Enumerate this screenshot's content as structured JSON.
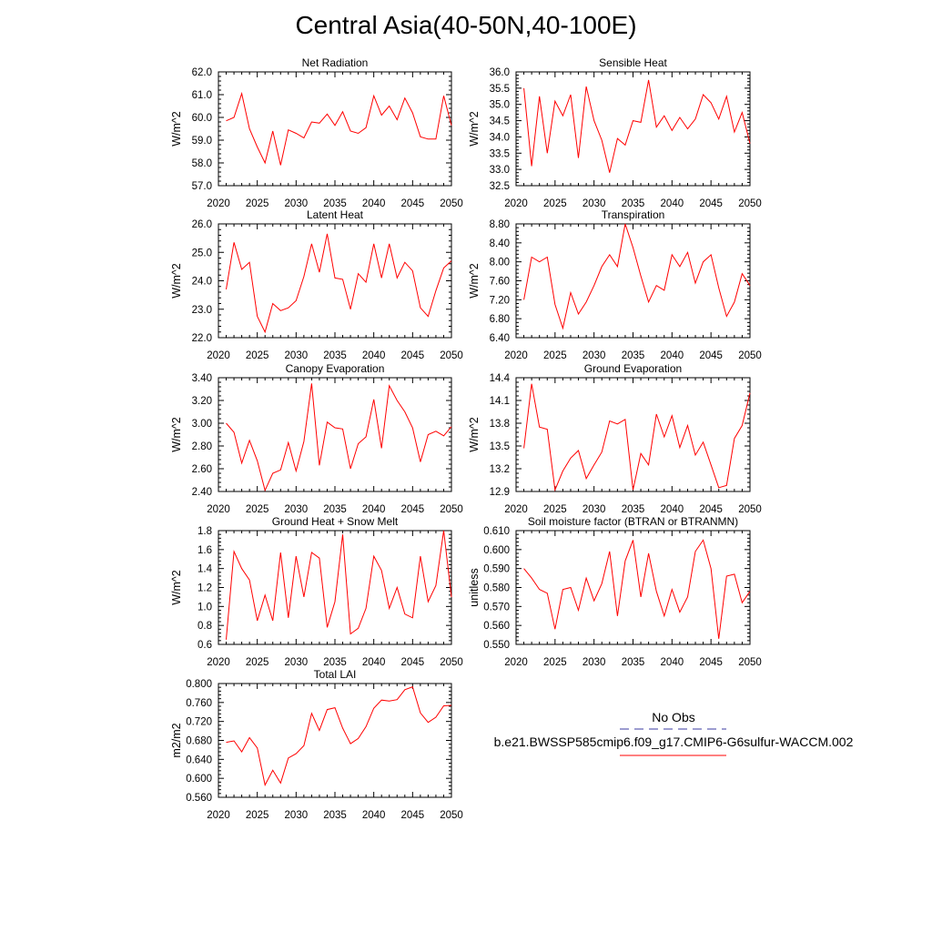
{
  "title": "Central Asia(40-50N,40-100E)",
  "legend": {
    "obs_label": "No Obs",
    "obs_color": "#3a3aa0",
    "model_label": "b.e21.BWSSP585cmip6.f09_g17.CMIP6-G6sulfur-WACCM.002",
    "model_color": "#ff0000"
  },
  "chart_data": [
    {
      "type": "line",
      "title": "Net Radiation",
      "xlabel": "",
      "ylabel": "W/m^2",
      "xlim": [
        2020,
        2050
      ],
      "ylim": [
        57.0,
        62.0
      ],
      "xticks": [
        2020,
        2025,
        2030,
        2035,
        2040,
        2045,
        2050
      ],
      "yticks": [
        "57.0",
        "58.0",
        "59.0",
        "60.0",
        "61.0",
        "62.0"
      ],
      "x": [
        2021,
        2022,
        2023,
        2024,
        2025,
        2026,
        2027,
        2028,
        2029,
        2030,
        2031,
        2032,
        2033,
        2034,
        2035,
        2036,
        2037,
        2038,
        2039,
        2040,
        2041,
        2042,
        2043,
        2044,
        2045,
        2046,
        2047,
        2048,
        2049,
        2050
      ],
      "values": [
        59.85,
        60.0,
        61.05,
        59.5,
        58.7,
        58.0,
        59.4,
        57.9,
        59.45,
        59.3,
        59.1,
        59.8,
        59.75,
        60.15,
        59.65,
        60.25,
        59.4,
        59.3,
        59.55,
        60.95,
        60.1,
        60.5,
        59.9,
        60.85,
        60.2,
        59.15,
        59.05,
        59.05,
        60.95,
        59.65
      ],
      "grid": false
    },
    {
      "type": "line",
      "title": "Sensible Heat",
      "xlabel": "",
      "ylabel": "W/m^2",
      "xlim": [
        2020,
        2050
      ],
      "ylim": [
        32.5,
        36.0
      ],
      "xticks": [
        2020,
        2025,
        2030,
        2035,
        2040,
        2045,
        2050
      ],
      "yticks": [
        "32.5",
        "33.0",
        "33.5",
        "34.0",
        "34.5",
        "35.0",
        "35.5",
        "36.0"
      ],
      "x": [
        2021,
        2022,
        2023,
        2024,
        2025,
        2026,
        2027,
        2028,
        2029,
        2030,
        2031,
        2032,
        2033,
        2034,
        2035,
        2036,
        2037,
        2038,
        2039,
        2040,
        2041,
        2042,
        2043,
        2044,
        2045,
        2046,
        2047,
        2048,
        2049,
        2050
      ],
      "values": [
        35.5,
        33.1,
        35.25,
        33.5,
        35.1,
        34.65,
        35.3,
        33.35,
        35.55,
        34.5,
        33.9,
        32.9,
        33.95,
        33.75,
        34.5,
        34.45,
        35.75,
        34.3,
        34.65,
        34.2,
        34.6,
        34.25,
        34.55,
        35.3,
        35.05,
        34.55,
        35.25,
        34.15,
        34.75,
        33.8
      ],
      "grid": false
    },
    {
      "type": "line",
      "title": "Latent Heat",
      "xlabel": "",
      "ylabel": "W/m^2",
      "xlim": [
        2020,
        2050
      ],
      "ylim": [
        22.0,
        26.0
      ],
      "xticks": [
        2020,
        2025,
        2030,
        2035,
        2040,
        2045,
        2050
      ],
      "yticks": [
        "22.0",
        "23.0",
        "24.0",
        "25.0",
        "26.0"
      ],
      "x": [
        2021,
        2022,
        2023,
        2024,
        2025,
        2026,
        2027,
        2028,
        2029,
        2030,
        2031,
        2032,
        2033,
        2034,
        2035,
        2036,
        2037,
        2038,
        2039,
        2040,
        2041,
        2042,
        2043,
        2044,
        2045,
        2046,
        2047,
        2048,
        2049,
        2050
      ],
      "values": [
        23.7,
        25.35,
        24.4,
        24.65,
        22.75,
        22.2,
        23.2,
        22.95,
        23.05,
        23.3,
        24.15,
        25.3,
        24.3,
        25.65,
        24.1,
        24.05,
        23.0,
        24.25,
        23.95,
        25.3,
        24.1,
        25.3,
        24.1,
        24.65,
        24.35,
        23.05,
        22.75,
        23.65,
        24.45,
        24.7
      ],
      "grid": false
    },
    {
      "type": "line",
      "title": "Transpiration",
      "xlabel": "",
      "ylabel": "W/m^2",
      "xlim": [
        2020,
        2050
      ],
      "ylim": [
        6.4,
        8.8
      ],
      "xticks": [
        2020,
        2025,
        2030,
        2035,
        2040,
        2045,
        2050
      ],
      "yticks": [
        "6.40",
        "6.80",
        "7.20",
        "7.60",
        "8.00",
        "8.40",
        "8.80"
      ],
      "x": [
        2021,
        2022,
        2023,
        2024,
        2025,
        2026,
        2027,
        2028,
        2029,
        2030,
        2031,
        2032,
        2033,
        2034,
        2035,
        2036,
        2037,
        2038,
        2039,
        2040,
        2041,
        2042,
        2043,
        2044,
        2045,
        2046,
        2047,
        2048,
        2049,
        2050
      ],
      "values": [
        7.2,
        8.1,
        8.0,
        8.1,
        7.1,
        6.6,
        7.35,
        6.9,
        7.15,
        7.5,
        7.9,
        8.15,
        7.9,
        8.8,
        8.3,
        7.7,
        7.15,
        7.5,
        7.4,
        8.15,
        7.9,
        8.2,
        7.55,
        8.0,
        8.15,
        7.45,
        6.85,
        7.15,
        7.75,
        7.5
      ],
      "grid": false
    },
    {
      "type": "line",
      "title": "Canopy Evaporation",
      "xlabel": "",
      "ylabel": "W/m^2",
      "xlim": [
        2020,
        2050
      ],
      "ylim": [
        2.4,
        3.4
      ],
      "xticks": [
        2020,
        2025,
        2030,
        2035,
        2040,
        2045,
        2050
      ],
      "yticks": [
        "2.40",
        "2.60",
        "2.80",
        "3.00",
        "3.20",
        "3.40"
      ],
      "x": [
        2021,
        2022,
        2023,
        2024,
        2025,
        2026,
        2027,
        2028,
        2029,
        2030,
        2031,
        2032,
        2033,
        2034,
        2035,
        2036,
        2037,
        2038,
        2039,
        2040,
        2041,
        2042,
        2043,
        2044,
        2045,
        2046,
        2047,
        2048,
        2049,
        2050
      ],
      "values": [
        3.0,
        2.92,
        2.65,
        2.85,
        2.67,
        2.41,
        2.56,
        2.59,
        2.83,
        2.58,
        2.84,
        3.35,
        2.63,
        3.01,
        2.96,
        2.95,
        2.6,
        2.82,
        2.88,
        3.21,
        2.78,
        3.33,
        3.2,
        3.1,
        2.96,
        2.66,
        2.9,
        2.93,
        2.89,
        2.97
      ],
      "grid": false
    },
    {
      "type": "line",
      "title": "Ground Evaporation",
      "xlabel": "",
      "ylabel": "W/m^2",
      "xlim": [
        2020,
        2050
      ],
      "ylim": [
        12.9,
        14.4
      ],
      "xticks": [
        2020,
        2025,
        2030,
        2035,
        2040,
        2045,
        2050
      ],
      "yticks": [
        "12.9",
        "13.2",
        "13.5",
        "13.8",
        "14.1",
        "14.4"
      ],
      "x": [
        2021,
        2022,
        2023,
        2024,
        2025,
        2026,
        2027,
        2028,
        2029,
        2030,
        2031,
        2032,
        2033,
        2034,
        2035,
        2036,
        2037,
        2038,
        2039,
        2040,
        2041,
        2042,
        2043,
        2044,
        2045,
        2046,
        2047,
        2048,
        2049,
        2050
      ],
      "values": [
        13.47,
        14.32,
        13.75,
        13.72,
        12.92,
        13.17,
        13.34,
        13.44,
        13.07,
        13.25,
        13.42,
        13.83,
        13.79,
        13.85,
        12.92,
        13.4,
        13.25,
        13.92,
        13.62,
        13.9,
        13.48,
        13.77,
        13.38,
        13.55,
        13.25,
        12.95,
        12.98,
        13.6,
        13.77,
        14.2
      ],
      "grid": false
    },
    {
      "type": "line",
      "title": "Ground Heat + Snow Melt",
      "xlabel": "",
      "ylabel": "W/m^2",
      "xlim": [
        2020,
        2050
      ],
      "ylim": [
        0.6,
        1.8
      ],
      "xticks": [
        2020,
        2025,
        2030,
        2035,
        2040,
        2045,
        2050
      ],
      "yticks": [
        "0.6",
        "0.8",
        "1.0",
        "1.2",
        "1.4",
        "1.6",
        "1.8"
      ],
      "x": [
        2021,
        2022,
        2023,
        2024,
        2025,
        2026,
        2027,
        2028,
        2029,
        2030,
        2031,
        2032,
        2033,
        2034,
        2035,
        2036,
        2037,
        2038,
        2039,
        2040,
        2041,
        2042,
        2043,
        2044,
        2045,
        2046,
        2047,
        2048,
        2049,
        2050
      ],
      "values": [
        0.65,
        1.58,
        1.4,
        1.28,
        0.85,
        1.12,
        0.85,
        1.57,
        0.88,
        1.53,
        1.1,
        1.57,
        1.51,
        0.78,
        1.05,
        1.76,
        0.71,
        0.77,
        0.98,
        1.53,
        1.38,
        0.98,
        1.2,
        0.92,
        0.88,
        1.53,
        1.05,
        1.22,
        1.8,
        1.1
      ],
      "grid": false
    },
    {
      "type": "line",
      "title": "Soil moisture factor (BTRAN or BTRANMN)",
      "xlabel": "",
      "ylabel": "unitless",
      "xlim": [
        2020,
        2050
      ],
      "ylim": [
        0.55,
        0.61
      ],
      "xticks": [
        2020,
        2025,
        2030,
        2035,
        2040,
        2045,
        2050
      ],
      "yticks": [
        "0.550",
        "0.560",
        "0.570",
        "0.580",
        "0.590",
        "0.600",
        "0.610"
      ],
      "x": [
        2021,
        2022,
        2023,
        2024,
        2025,
        2026,
        2027,
        2028,
        2029,
        2030,
        2031,
        2032,
        2033,
        2034,
        2035,
        2036,
        2037,
        2038,
        2039,
        2040,
        2041,
        2042,
        2043,
        2044,
        2045,
        2046,
        2047,
        2048,
        2049,
        2050
      ],
      "values": [
        0.59,
        0.585,
        0.579,
        0.577,
        0.558,
        0.579,
        0.58,
        0.568,
        0.585,
        0.573,
        0.582,
        0.599,
        0.565,
        0.594,
        0.605,
        0.575,
        0.598,
        0.578,
        0.565,
        0.579,
        0.567,
        0.575,
        0.599,
        0.605,
        0.59,
        0.553,
        0.586,
        0.587,
        0.572,
        0.578
      ],
      "grid": false
    },
    {
      "type": "line",
      "title": "Total LAI",
      "xlabel": "",
      "ylabel": "m2/m2",
      "xlim": [
        2020,
        2050
      ],
      "ylim": [
        0.56,
        0.8
      ],
      "xticks": [
        2020,
        2025,
        2030,
        2035,
        2040,
        2045,
        2050
      ],
      "yticks": [
        "0.560",
        "0.600",
        "0.640",
        "0.680",
        "0.720",
        "0.760",
        "0.800"
      ],
      "x": [
        2021,
        2022,
        2023,
        2024,
        2025,
        2026,
        2027,
        2028,
        2029,
        2030,
        2031,
        2032,
        2033,
        2034,
        2035,
        2036,
        2037,
        2038,
        2039,
        2040,
        2041,
        2042,
        2043,
        2044,
        2045,
        2046,
        2047,
        2048,
        2049,
        2050
      ],
      "values": [
        0.676,
        0.679,
        0.656,
        0.686,
        0.664,
        0.586,
        0.617,
        0.59,
        0.643,
        0.652,
        0.669,
        0.737,
        0.701,
        0.745,
        0.749,
        0.706,
        0.673,
        0.684,
        0.709,
        0.748,
        0.765,
        0.763,
        0.766,
        0.787,
        0.793,
        0.738,
        0.718,
        0.729,
        0.753,
        0.754
      ],
      "grid": false
    }
  ]
}
